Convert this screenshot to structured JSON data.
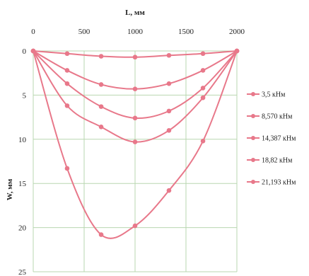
{
  "chart_data": {
    "type": "line",
    "title": "",
    "xlabel": "L, мм",
    "ylabel": "W, мм",
    "xlim": [
      0,
      2000
    ],
    "ylim": [
      0,
      25
    ],
    "y_inverted": true,
    "x_axis_position": "top",
    "grid": true,
    "legend_position": "right",
    "x_ticks": [
      0,
      500,
      1000,
      1500,
      2000
    ],
    "y_ticks": [
      0,
      5,
      10,
      15,
      20,
      25
    ],
    "x_tick_labels": [
      "0",
      "500",
      "1000",
      "1500",
      "2000"
    ],
    "y_tick_labels": [
      "0",
      "5",
      "10",
      "15",
      "20",
      "25"
    ],
    "line_color": "#e8788a",
    "grid_color": "#b9d7b0",
    "series": [
      {
        "name": "3,5 кНм",
        "x": [
          0,
          333,
          667,
          1000,
          1333,
          1667,
          2000
        ],
        "y": [
          0,
          0.3,
          0.6,
          0.7,
          0.5,
          0.3,
          0
        ]
      },
      {
        "name": "8,570 кНм",
        "x": [
          0,
          333,
          667,
          1000,
          1333,
          1667,
          2000
        ],
        "y": [
          0,
          2.2,
          3.8,
          4.3,
          3.7,
          2.2,
          0
        ]
      },
      {
        "name": "14,387 кНм",
        "x": [
          0,
          333,
          667,
          1000,
          1333,
          1667,
          2000
        ],
        "y": [
          0,
          3.7,
          6.3,
          7.6,
          6.8,
          4.2,
          0
        ]
      },
      {
        "name": "18,82 кНм",
        "x": [
          0,
          333,
          667,
          1000,
          1333,
          1667,
          2000
        ],
        "y": [
          0,
          6.2,
          8.6,
          10.3,
          9.0,
          5.3,
          0
        ]
      },
      {
        "name": "21,193 кНм",
        "x": [
          0,
          333,
          667,
          1000,
          1333,
          1667,
          2000
        ],
        "y": [
          0,
          13.3,
          20.8,
          19.8,
          15.8,
          10.2,
          0
        ]
      }
    ]
  }
}
